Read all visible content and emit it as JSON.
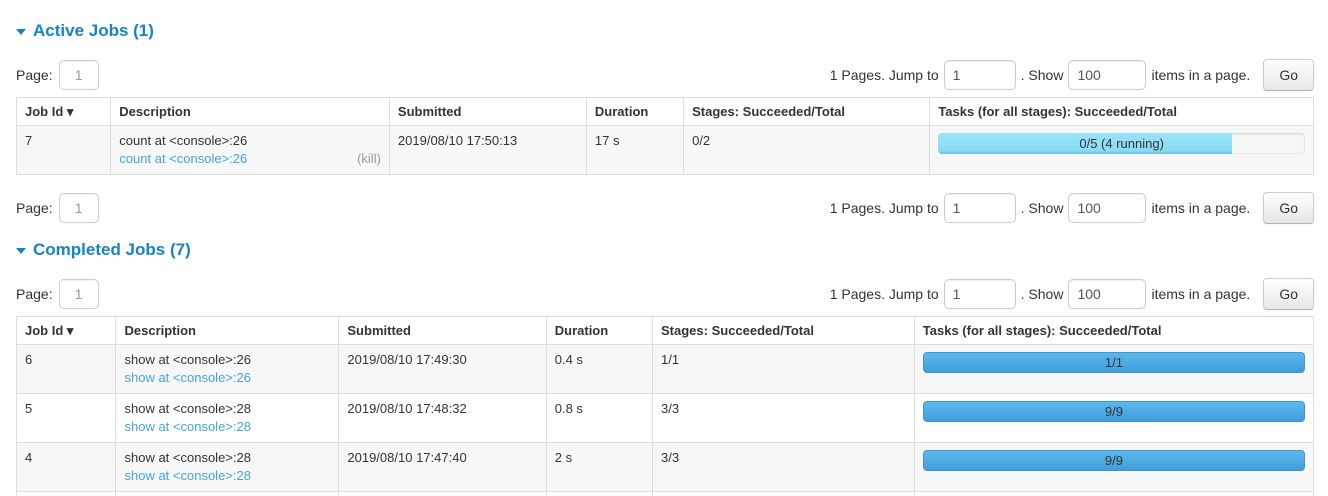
{
  "colors": {
    "title_blue": "#1583c8",
    "link_blue": "#45a4dc",
    "kill_gray": "#999999",
    "running_fill": "#8adbf5",
    "completed_fill_top": "#5cb9ec",
    "completed_fill_bottom": "#419ddb",
    "striped_row": "#f7f7f7"
  },
  "pagination": {
    "page_label": "Page:",
    "page_value": "1",
    "pages_text": "1 Pages. Jump to",
    "jump_value": "1",
    "show_text": ". Show",
    "show_value": "100",
    "suffix_text": "items in a page.",
    "go_label": "Go"
  },
  "active_jobs": {
    "title": "Active Jobs (1)",
    "columns": [
      "Job Id ▾",
      "Description",
      "Submitted",
      "Duration",
      "Stages: Succeeded/Total",
      "Tasks (for all stages): Succeeded/Total"
    ],
    "rows": [
      {
        "job_id": "7",
        "description": "count at <console>:26",
        "description_link": "count at <console>:26",
        "kill_label": "(kill)",
        "submitted": "2019/08/10 17:50:13",
        "duration": "17 s",
        "stages": "0/2",
        "progress": {
          "label": "0/5 (4 running)",
          "percent": 80,
          "kind": "running"
        }
      }
    ]
  },
  "completed_jobs": {
    "title": "Completed Jobs (7)",
    "columns": [
      "Job Id ▾",
      "Description",
      "Submitted",
      "Duration",
      "Stages: Succeeded/Total",
      "Tasks (for all stages): Succeeded/Total"
    ],
    "rows": [
      {
        "job_id": "6",
        "description": "show at <console>:26",
        "description_link": "show at <console>:26",
        "submitted": "2019/08/10 17:49:30",
        "duration": "0.4 s",
        "stages": "1/1",
        "progress": {
          "label": "1/1",
          "percent": 100,
          "kind": "completed"
        }
      },
      {
        "job_id": "5",
        "description": "show at <console>:28",
        "description_link": "show at <console>:28",
        "submitted": "2019/08/10 17:48:32",
        "duration": "0.8 s",
        "stages": "3/3",
        "progress": {
          "label": "9/9",
          "percent": 100,
          "kind": "completed"
        }
      },
      {
        "job_id": "4",
        "description": "show at <console>:28",
        "description_link": "show at <console>:28",
        "submitted": "2019/08/10 17:47:40",
        "duration": "2 s",
        "stages": "3/3",
        "progress": {
          "label": "9/9",
          "percent": 100,
          "kind": "completed"
        }
      }
    ]
  }
}
